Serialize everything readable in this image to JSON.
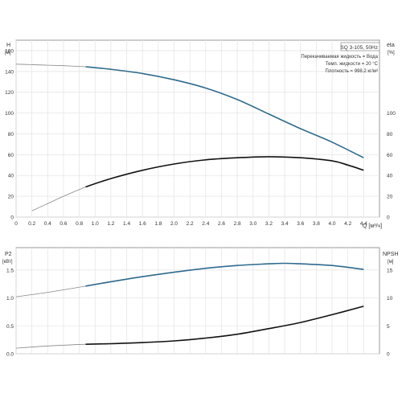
{
  "chart_data": [
    {
      "type": "line",
      "panel": "top",
      "title": "SQ 3-105, 50Hz",
      "annotations": [
        "Перекачиваемая жидкость = Вода",
        "Темп. жидкости = 20 °C",
        "Плотность = 998.2 кг/м³"
      ],
      "xlabel": "Q [м³/ч]",
      "ylabel_left": "H",
      "ylabel_left_unit": "[м]",
      "ylabel_right": "eta",
      "ylabel_right_unit": "[%]",
      "xlim": [
        0,
        4.6
      ],
      "ylim": [
        0,
        170
      ],
      "x_ticks": [
        "0",
        "0.2",
        "0.4",
        "0.6",
        "0.8",
        "1.0",
        "1.2",
        "1.4",
        "1.6",
        "1.8",
        "2.0",
        "2.2",
        "2.4",
        "2.6",
        "2.8",
        "3.0",
        "3.2",
        "3.4",
        "3.6",
        "3.8",
        "4.0",
        "4.2",
        "4.4"
      ],
      "y_ticks_left": [
        "0",
        "20",
        "40",
        "60",
        "80",
        "100",
        "120",
        "140",
        "160"
      ],
      "y_ticks_right": [
        "0",
        "20",
        "40",
        "60",
        "80",
        "100"
      ],
      "grid": true,
      "series": [
        {
          "key": "head",
          "color": "#2e6a8e",
          "x": [
            0,
            0.2,
            0.4,
            0.6,
            0.88,
            1.2,
            1.6,
            2.0,
            2.4,
            2.8,
            3.2,
            3.6,
            4.0,
            4.4
          ],
          "y": [
            147,
            146.5,
            146,
            145.5,
            144.5,
            142,
            138,
            132,
            124,
            113,
            99,
            85,
            72,
            57
          ],
          "op_start": 0.88
        },
        {
          "key": "efficiency",
          "color": "#111111",
          "x": [
            0.2,
            0.4,
            0.6,
            0.88,
            1.2,
            1.6,
            2.0,
            2.4,
            2.8,
            3.2,
            3.6,
            4.0,
            4.2,
            4.4
          ],
          "y": [
            6,
            13,
            20,
            29,
            37,
            45,
            51,
            55,
            57,
            58,
            57,
            54,
            50,
            45
          ],
          "op_start": 0.88
        }
      ]
    },
    {
      "type": "line",
      "panel": "bottom",
      "xlabel": "",
      "ylabel_left": "P2",
      "ylabel_left_unit": "[кВт]",
      "ylabel_right": "NPSH",
      "ylabel_right_unit": "[м]",
      "xlim": [
        0,
        4.6
      ],
      "ylim": [
        0,
        1.9
      ],
      "y_ticks_left": [
        "0.0",
        "0.5",
        "1.0",
        "1.5"
      ],
      "y_ticks_right": [
        "0",
        "5",
        "10",
        "15"
      ],
      "grid": true,
      "series": [
        {
          "key": "power",
          "color": "#2e6a8e",
          "x": [
            0,
            0.4,
            0.88,
            1.2,
            1.6,
            2.0,
            2.4,
            2.8,
            3.2,
            3.4,
            3.6,
            4.0,
            4.4
          ],
          "y": [
            1.02,
            1.1,
            1.21,
            1.29,
            1.38,
            1.46,
            1.53,
            1.58,
            1.61,
            1.62,
            1.61,
            1.58,
            1.51
          ],
          "op_start": 0.88
        },
        {
          "key": "power2",
          "color": "#111111",
          "x": [
            0,
            0.4,
            0.88,
            1.2,
            1.6,
            2.0,
            2.4,
            2.8,
            3.2,
            3.6,
            4.0,
            4.4
          ],
          "y": [
            0.1,
            0.14,
            0.17,
            0.18,
            0.2,
            0.23,
            0.28,
            0.35,
            0.45,
            0.56,
            0.7,
            0.85
          ],
          "op_start": 0.88
        }
      ]
    }
  ]
}
